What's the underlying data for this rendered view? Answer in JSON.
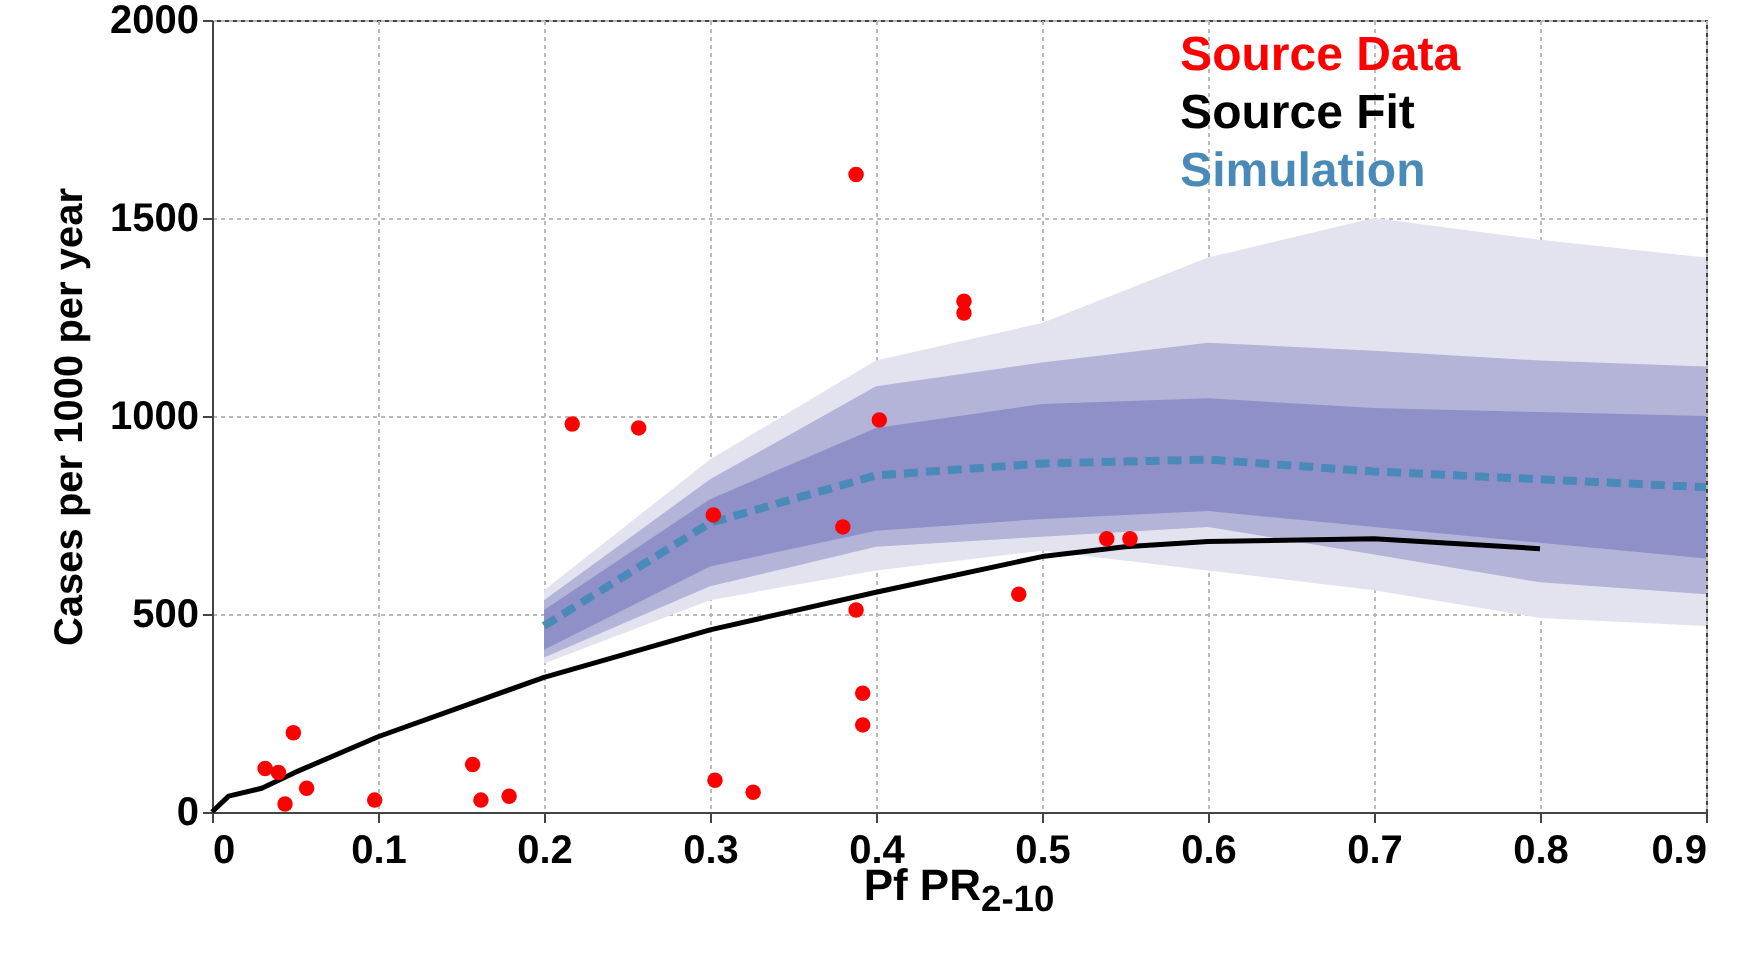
{
  "chart_data": {
    "type": "line",
    "xlabel": "Pf PR$_{2-10}$",
    "ylabel": "Cases per 1000 per year",
    "xlim": [
      0,
      0.9
    ],
    "ylim": [
      0,
      2000
    ],
    "xticks": [
      0,
      0.1,
      0.2,
      0.3,
      0.4,
      0.5,
      0.6,
      0.7,
      0.8,
      0.9
    ],
    "yticks": [
      0,
      500,
      1000,
      1500,
      2000
    ],
    "grid": true,
    "legend": "top right",
    "series": [
      {
        "name": "Source Data",
        "type": "scatter",
        "marker": "circle",
        "color": "#ff0000",
        "x": [
          0.032,
          0.04,
          0.049,
          0.044,
          0.057,
          0.098,
          0.157,
          0.162,
          0.179,
          0.217,
          0.257,
          0.302,
          0.303,
          0.326,
          0.388,
          0.38,
          0.388,
          0.392,
          0.392,
          0.402,
          0.453,
          0.453,
          0.486,
          0.539,
          0.553
        ],
        "values": [
          110,
          100,
          200,
          20,
          60,
          30,
          120,
          30,
          40,
          980,
          970,
          750,
          80,
          50,
          1610,
          720,
          510,
          300,
          220,
          990,
          1290,
          1260,
          550,
          690,
          690
        ]
      },
      {
        "name": "Source Fit",
        "line_style": "solid",
        "color": "#000000",
        "x": [
          0,
          0.01,
          0.03,
          0.05,
          0.1,
          0.2,
          0.3,
          0.4,
          0.5,
          0.55,
          0.6,
          0.7,
          0.8
        ],
        "values": [
          0,
          40,
          60,
          100,
          190,
          340,
          460,
          555,
          645,
          670,
          683,
          690,
          665
        ]
      },
      {
        "color": "#e3e3f0",
        "x": [
          0.2,
          0.3,
          0.4,
          0.5,
          0.6,
          0.7,
          0.8,
          0.9
        ],
        "values": [
          null,
          null,
          null,
          null,
          null,
          null,
          null,
          null
        ],
        "lower": [
          375,
          535,
          610,
          660,
          610,
          560,
          490,
          470
        ],
        "upper": [
          560,
          890,
          1140,
          1235,
          1400,
          1500,
          1445,
          1400
        ]
      },
      {
        "color": "#b4b4d9",
        "x": [
          0.2,
          0.3,
          0.4,
          0.5,
          0.6,
          0.7,
          0.8,
          0.9
        ],
        "values": [
          null,
          null,
          null,
          null,
          null,
          null,
          null,
          null
        ],
        "lower": [
          390,
          570,
          670,
          695,
          720,
          650,
          580,
          550
        ],
        "upper": [
          535,
          840,
          1075,
          1135,
          1185,
          1165,
          1140,
          1125
        ]
      },
      {
        "color": "#9090c8",
        "x": [
          0.2,
          0.3,
          0.4,
          0.5,
          0.6,
          0.7,
          0.8,
          0.9
        ],
        "values": [
          null,
          null,
          null,
          null,
          null,
          null,
          null,
          null
        ],
        "lower": [
          410,
          620,
          710,
          740,
          760,
          720,
          680,
          640
        ],
        "upper": [
          510,
          790,
          970,
          1030,
          1045,
          1020,
          1010,
          1000
        ]
      },
      {
        "name": "Simulation",
        "type": "line",
        "line_style": "dashed",
        "color": "#4a8ab8",
        "x": [
          0.2,
          0.3,
          0.4,
          0.5,
          0.6,
          0.7,
          0.8,
          0.9
        ],
        "values": [
          470,
          730,
          850,
          880,
          890,
          860,
          840,
          820
        ]
      }
    ]
  }
}
